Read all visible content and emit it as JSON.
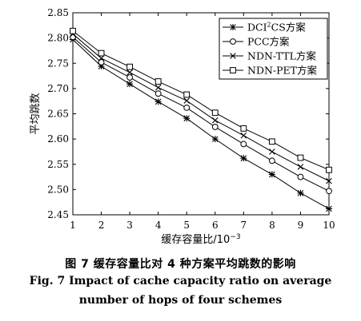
{
  "chart_data": {
    "type": "line",
    "title": "",
    "xlabel_base": "缓存容量比/10",
    "xlabel_exp": "−3",
    "ylabel": "平均跳数",
    "x": [
      1,
      2,
      3,
      4,
      5,
      6,
      7,
      8,
      9,
      10
    ],
    "xlim": [
      1,
      10
    ],
    "ylim": [
      2.45,
      2.85
    ],
    "yticks": [
      "2.45",
      "2.50",
      "2.55",
      "2.60",
      "2.65",
      "2.70",
      "2.75",
      "2.80",
      "2.85"
    ],
    "xticks": [
      "1",
      "2",
      "3",
      "4",
      "5",
      "6",
      "7",
      "8",
      "9",
      "10"
    ],
    "grid": false,
    "legend_position": "top-right",
    "series": [
      {
        "name_base": "DCI",
        "name_sup": "2",
        "name_rest": "CS方案",
        "marker": "asterisk",
        "values": [
          2.797,
          2.744,
          2.709,
          2.674,
          2.641,
          2.6,
          2.562,
          2.53,
          2.493,
          2.462
        ]
      },
      {
        "name": "PCC方案",
        "marker": "circle",
        "values": [
          2.802,
          2.752,
          2.722,
          2.69,
          2.662,
          2.624,
          2.59,
          2.557,
          2.525,
          2.497
        ]
      },
      {
        "name": "NDN-TTL方案",
        "marker": "x",
        "values": [
          2.808,
          2.76,
          2.732,
          2.702,
          2.676,
          2.637,
          2.607,
          2.575,
          2.545,
          2.517
        ]
      },
      {
        "name": "NDN-PET方案",
        "marker": "square",
        "values": [
          2.814,
          2.77,
          2.743,
          2.714,
          2.688,
          2.652,
          2.621,
          2.595,
          2.563,
          2.539
        ]
      }
    ]
  },
  "caption": {
    "zh": "图 7    缓存容量比对 4 种方案平均跳数的影响",
    "en_line1": "Fig. 7    Impact of cache capacity ratio on average",
    "en_line2": "number of hops of four schemes"
  }
}
